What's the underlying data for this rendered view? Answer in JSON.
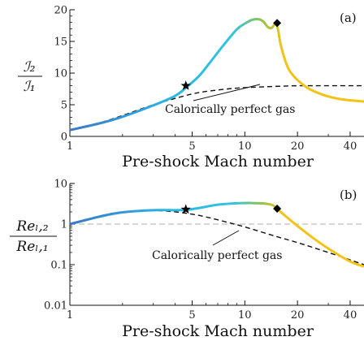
{
  "chart_data": [
    {
      "type": "line",
      "panel_label": "(a)",
      "xlabel": "Pre-shock Mach number",
      "ylabel_num": "ℐ₂",
      "ylabel_den": "ℐ₁",
      "x_scale": "log",
      "xlim": [
        1,
        48
      ],
      "ylim": [
        0,
        20
      ],
      "x_ticks": [
        1,
        5,
        10,
        20,
        40
      ],
      "x_tick_labels": [
        "1",
        "5",
        "10",
        "20",
        "40"
      ],
      "y_ticks": [
        0,
        5,
        10,
        15,
        20
      ],
      "y_tick_labels": [
        "0",
        "5",
        "10",
        "15",
        "20"
      ],
      "annotation": "Calorically perfect gas",
      "series": [
        {
          "style": "solid-colored",
          "x": [
            1,
            1.5,
            2,
            3,
            4,
            4.7,
            5.5,
            6.5,
            7.5,
            9,
            10,
            11,
            12,
            12.8,
            13.5,
            14.2,
            15,
            15.5,
            16,
            17,
            18,
            20,
            23,
            26,
            30,
            35,
            40,
            48
          ],
          "y": [
            1,
            2.1,
            3.1,
            4.9,
            6.4,
            7.9,
            9.6,
            12.1,
            14.3,
            16.9,
            17.8,
            18.4,
            18.5,
            18.1,
            17.3,
            17.1,
            17.8,
            16.8,
            14.6,
            12.0,
            10.4,
            8.9,
            7.6,
            6.9,
            6.3,
            5.9,
            5.7,
            5.5
          ]
        },
        {
          "style": "dashed",
          "x": [
            1,
            1.5,
            2,
            3,
            4,
            5,
            6,
            8,
            10,
            15,
            20,
            30,
            48
          ],
          "y": [
            1,
            2.2,
            3.3,
            5.0,
            6.0,
            6.7,
            7.1,
            7.5,
            7.7,
            7.9,
            8.0,
            8.0,
            8.0
          ]
        }
      ],
      "markers": [
        {
          "shape": "star",
          "x": 4.6,
          "y": 8.0
        },
        {
          "shape": "diamond",
          "x": 15.3,
          "y": 17.9
        }
      ]
    },
    {
      "type": "line",
      "panel_label": "(b)",
      "xlabel": "Pre-shock Mach number",
      "ylabel_num": "Reₗ,₂",
      "ylabel_den": "Reₗ,₁",
      "x_scale": "log",
      "y_scale": "log",
      "xlim": [
        1,
        48
      ],
      "ylim": [
        0.01,
        10
      ],
      "x_ticks": [
        1,
        5,
        10,
        20,
        40
      ],
      "x_tick_labels": [
        "1",
        "5",
        "10",
        "20",
        "40"
      ],
      "y_ticks": [
        0.01,
        0.1,
        1,
        10
      ],
      "y_tick_labels": [
        "0.01",
        "0.1",
        "1",
        "10"
      ],
      "reference_line_y": 1,
      "annotation": "Calorically perfect gas",
      "series": [
        {
          "style": "solid-colored",
          "x": [
            1,
            1.5,
            2,
            3,
            4,
            4.7,
            5.5,
            7,
            9,
            11,
            13,
            14.5,
            15.3,
            17,
            20,
            25,
            30,
            40,
            48
          ],
          "y": [
            1,
            1.55,
            1.95,
            2.2,
            2.2,
            2.25,
            2.5,
            3.0,
            3.25,
            3.3,
            3.2,
            2.9,
            2.4,
            1.6,
            0.9,
            0.43,
            0.25,
            0.12,
            0.09
          ]
        },
        {
          "style": "dashed",
          "x": [
            1,
            1.5,
            2,
            3,
            4,
            5,
            6,
            8,
            10,
            15,
            20,
            30,
            48
          ],
          "y": [
            1,
            1.6,
            2.0,
            2.15,
            2.0,
            1.75,
            1.5,
            1.1,
            0.85,
            0.5,
            0.35,
            0.2,
            0.1
          ]
        }
      ],
      "markers": [
        {
          "shape": "star",
          "x": 4.6,
          "y": 2.3
        },
        {
          "shape": "diamond",
          "x": 15.3,
          "y": 2.4
        }
      ]
    }
  ]
}
